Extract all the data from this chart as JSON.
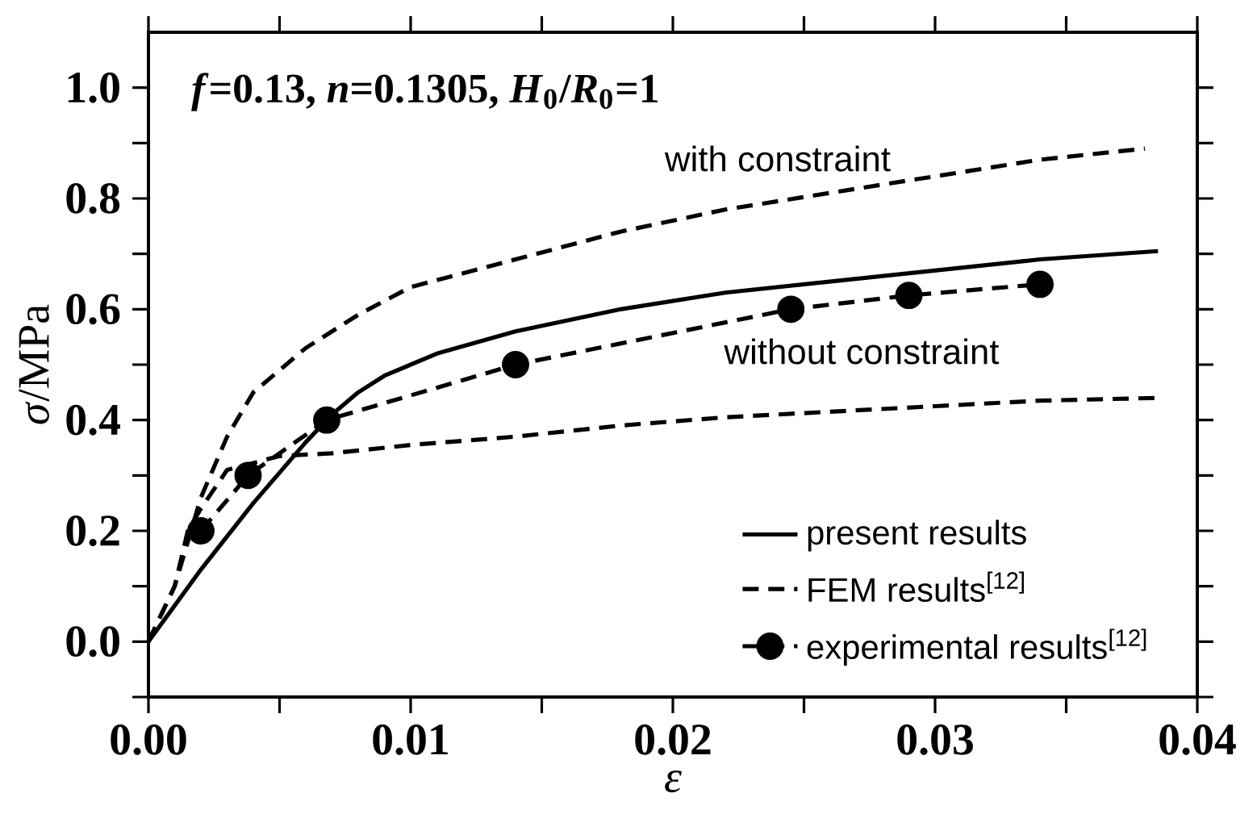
{
  "chart_data": {
    "type": "line",
    "xlabel": "*ε*",
    "ylabel": "*σ*/MPa",
    "xlim": [
      0,
      0.04
    ],
    "ylim": [
      -0.1,
      1.1
    ],
    "xticks": [
      {
        "value": 0,
        "label": "0.00"
      },
      {
        "value": 0.005,
        "label": null
      },
      {
        "value": 0.01,
        "label": "0.01"
      },
      {
        "value": 0.015,
        "label": null
      },
      {
        "value": 0.02,
        "label": "0.02"
      },
      {
        "value": 0.025,
        "label": null
      },
      {
        "value": 0.03,
        "label": "0.03"
      },
      {
        "value": 0.035,
        "label": null
      },
      {
        "value": 0.04,
        "label": "0.04"
      }
    ],
    "yticks": [
      {
        "value": -0.1,
        "label": null
      },
      {
        "value": 0,
        "label": "0.0"
      },
      {
        "value": 0.1,
        "label": null
      },
      {
        "value": 0.2,
        "label": "0.2"
      },
      {
        "value": 0.3,
        "label": null
      },
      {
        "value": 0.4,
        "label": "0.4"
      },
      {
        "value": 0.5,
        "label": null
      },
      {
        "value": 0.6,
        "label": "0.6"
      },
      {
        "value": 0.7,
        "label": null
      },
      {
        "value": 0.8,
        "label": "0.8"
      },
      {
        "value": 0.9,
        "label": null
      },
      {
        "value": 1.0,
        "label": "1.0"
      }
    ],
    "legend": "bottom right",
    "series": [
      {
        "name": "present results",
        "color": "#000000",
        "line_style": "solid",
        "marker": "none",
        "x": [
          0,
          0.002,
          0.004,
          0.006,
          0.007,
          0.008,
          0.009,
          0.011,
          0.014,
          0.018,
          0.022,
          0.026,
          0.03,
          0.034,
          0.0385
        ],
        "values": [
          0,
          0.13,
          0.25,
          0.36,
          0.41,
          0.45,
          0.48,
          0.52,
          0.56,
          0.6,
          0.63,
          0.65,
          0.67,
          0.69,
          0.705
        ]
      },
      {
        "name": "FEM results$^{[12]}$",
        "color": "#000000",
        "line_style": "dashed",
        "marker": "none",
        "x": [
          0,
          0.001,
          0.002,
          0.003,
          0.004,
          0.006,
          0.008,
          0.01,
          0.014,
          0.018,
          0.022,
          0.026,
          0.03,
          0.034,
          0.038
        ],
        "values": [
          0,
          0.1,
          0.26,
          0.37,
          0.45,
          0.53,
          0.59,
          0.64,
          0.69,
          0.74,
          0.78,
          0.81,
          0.84,
          0.87,
          0.89
        ]
      },
      {
        "name": "experimental results$^{[12]}$",
        "color": "#000000",
        "line_style": "dashed",
        "marker": "circle",
        "x": [
          0.002,
          0.0038,
          0.0068,
          0.014,
          0.0245,
          0.029,
          0.034
        ],
        "values": [
          0.2,
          0.3,
          0.4,
          0.5,
          0.6,
          0.625,
          0.645
        ]
      },
      {
        "color": "#000000",
        "line_style": "dashed",
        "marker": "none",
        "x": [
          0,
          0.001,
          0.0015,
          0.002,
          0.003,
          0.005,
          0.007,
          0.01,
          0.014,
          0.018,
          0.022,
          0.026,
          0.03,
          0.034,
          0.0385
        ],
        "values": [
          0,
          0.1,
          0.2,
          0.24,
          0.31,
          0.335,
          0.34,
          0.355,
          0.37,
          0.39,
          0.405,
          0.415,
          0.425,
          0.435,
          0.44
        ]
      }
    ],
    "annotations": [
      "*f*=0.13, *n*=0.1305, *H*$_{0}$/*R*$_{0}$=1",
      "with constraint",
      "without constraint"
    ]
  }
}
